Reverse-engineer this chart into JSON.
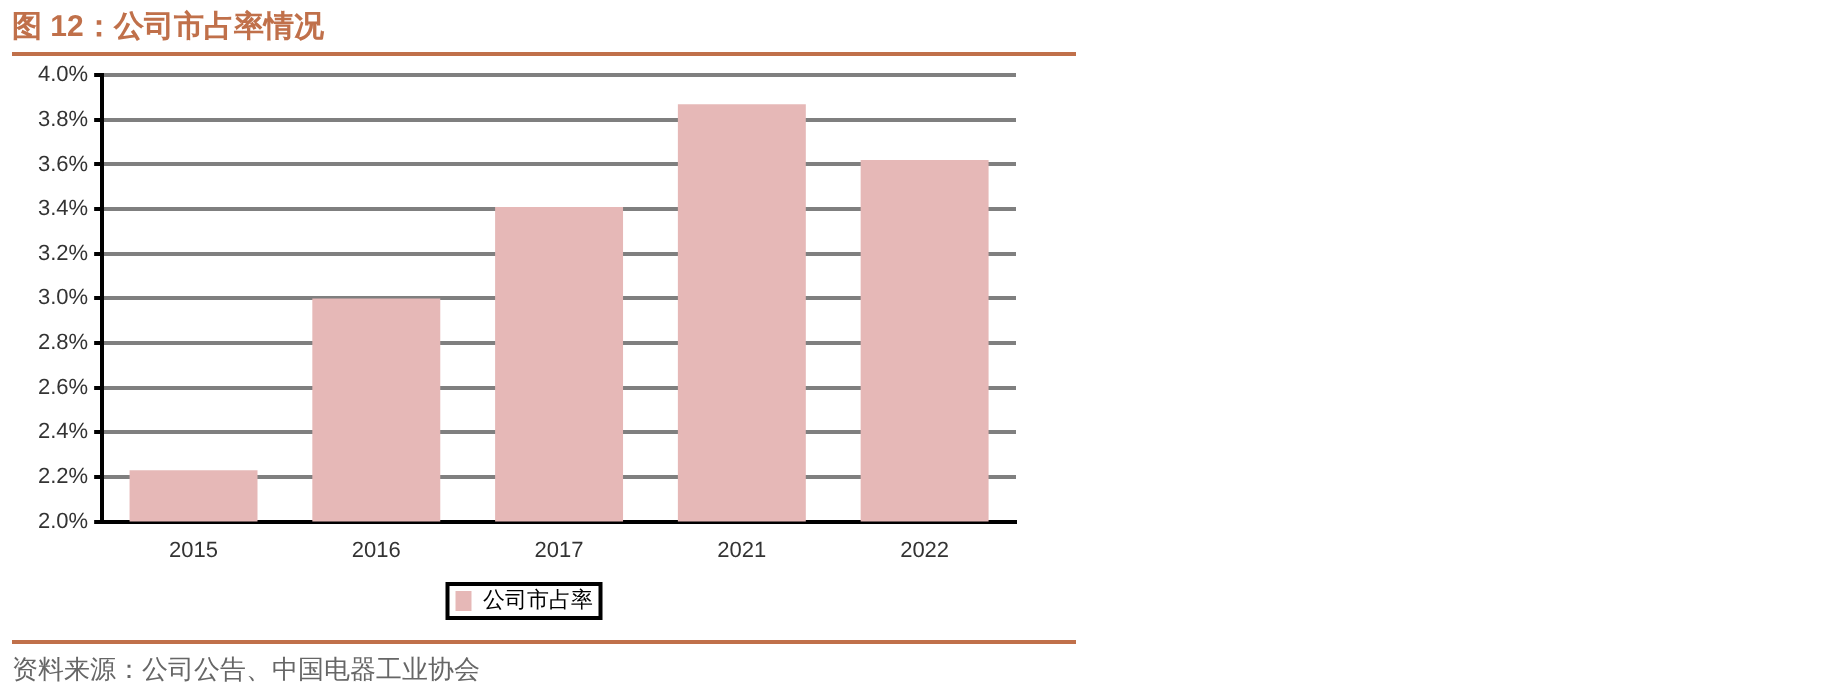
{
  "chart_data": {
    "type": "bar",
    "title": "图 12：公司市占率情况",
    "categories": [
      "2015",
      "2016",
      "2017",
      "2021",
      "2022"
    ],
    "series": [
      {
        "name": "公司市占率",
        "color": "#e6b8b7",
        "values": [
          2.23,
          3.0,
          3.41,
          3.87,
          3.62
        ]
      }
    ],
    "ylim": [
      2.0,
      4.0
    ],
    "yticks": [
      {
        "value": 2.0,
        "label": "2.0%"
      },
      {
        "value": 2.2,
        "label": "2.2%"
      },
      {
        "value": 2.4,
        "label": "2.4%"
      },
      {
        "value": 2.6,
        "label": "2.6%"
      },
      {
        "value": 2.8,
        "label": "2.8%"
      },
      {
        "value": 3.0,
        "label": "3.0%"
      },
      {
        "value": 3.2,
        "label": "3.2%"
      },
      {
        "value": 3.4,
        "label": "3.4%"
      },
      {
        "value": 3.6,
        "label": "3.6%"
      },
      {
        "value": 3.8,
        "label": "3.8%"
      },
      {
        "value": 4.0,
        "label": "4.0%"
      }
    ],
    "grid": "y",
    "legend": "bottom",
    "annotations": [
      "资料来源：公司公告、中国电器工业协会"
    ]
  }
}
